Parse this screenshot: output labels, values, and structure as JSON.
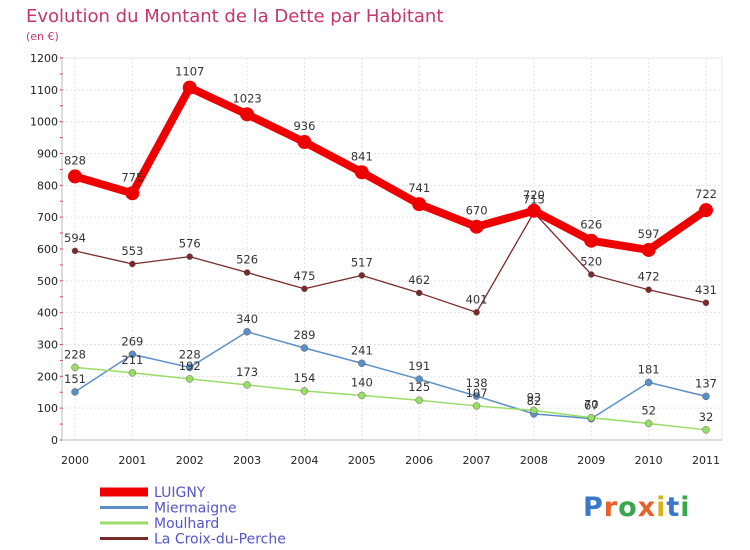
{
  "chart_data": {
    "type": "line",
    "title": "Evolution du Montant de la Dette par Habitant",
    "subtitle": "(en €)",
    "xlabel": "",
    "ylabel": "",
    "categories": [
      "2000",
      "2001",
      "2002",
      "2003",
      "2004",
      "2005",
      "2006",
      "2007",
      "2008",
      "2009",
      "2010",
      "2011"
    ],
    "ylim": [
      0,
      1200
    ],
    "yticks": [
      0,
      100,
      200,
      300,
      400,
      500,
      600,
      700,
      800,
      900,
      1000,
      1100,
      1200
    ],
    "grid": true,
    "legend_position": "bottom-left",
    "series": [
      {
        "name": "LUIGNY",
        "color": "#ee0000",
        "values": [
          828,
          775,
          1107,
          1023,
          936,
          841,
          741,
          670,
          720,
          626,
          597,
          722
        ]
      },
      {
        "name": "Miermaigne",
        "color": "#5b8fc7",
        "values": [
          151,
          269,
          228,
          340,
          289,
          241,
          191,
          138,
          82,
          67,
          181,
          137
        ]
      },
      {
        "name": "Moulhard",
        "color": "#99dd66",
        "values": [
          228,
          211,
          192,
          173,
          154,
          140,
          125,
          107,
          93,
          70,
          52,
          32
        ]
      },
      {
        "name": "La Croix-du-Perche",
        "color": "#7a2a2a",
        "values": [
          594,
          553,
          576,
          526,
          475,
          517,
          462,
          401,
          715,
          520,
          472,
          431
        ]
      }
    ]
  },
  "logo": {
    "text": "Proxiti"
  }
}
